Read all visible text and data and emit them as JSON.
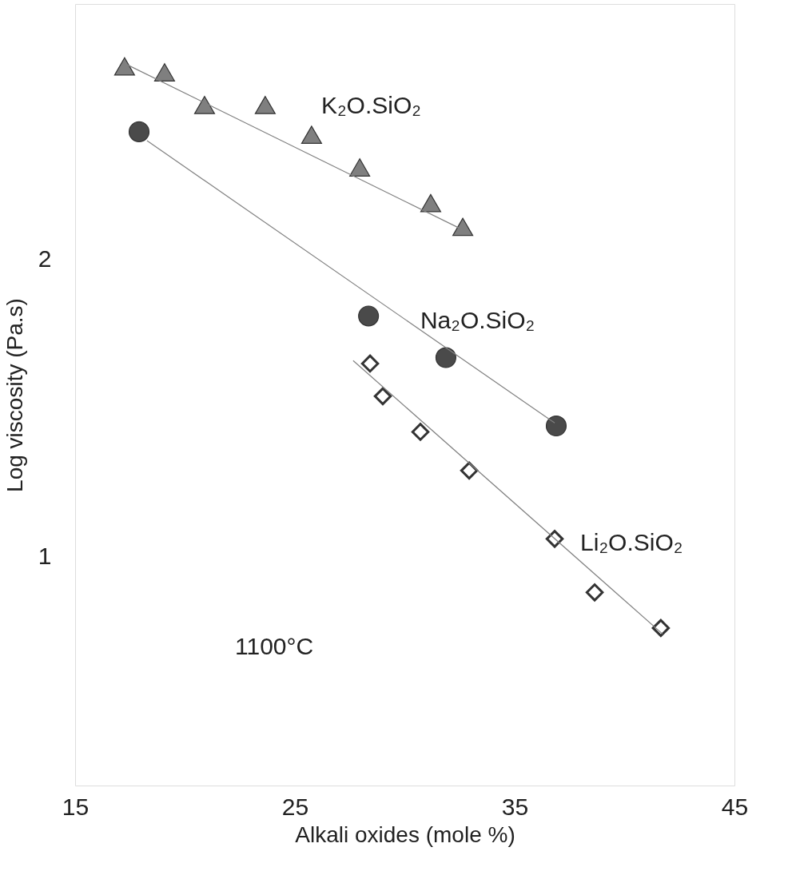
{
  "chart_data": {
    "type": "scatter",
    "xlabel": "Alkali oxides (mole %)",
    "ylabel": "Log viscosity (Pa.s)",
    "xlim": [
      15,
      45
    ],
    "xticks": [
      15,
      25,
      35,
      45
    ],
    "ylim": [
      0.23,
      2.86
    ],
    "yticks": [
      1,
      2
    ],
    "grid": false,
    "annotations": [
      "1100°C"
    ],
    "series": [
      {
        "name": "K₂O.SiO₂",
        "marker": "triangle",
        "color": "#7f7f7f",
        "x": [
          17.25,
          19.07,
          20.89,
          23.65,
          25.76,
          27.95,
          31.18,
          32.64
        ],
        "values": [
          2.65,
          2.63,
          2.52,
          2.52,
          2.42,
          2.31,
          2.19,
          2.11
        ]
      },
      {
        "name": "Na₂O.SiO₂",
        "marker": "circle",
        "color": "#4a4a4a",
        "x": [
          17.91,
          28.35,
          31.87,
          36.89
        ],
        "values": [
          2.43,
          1.81,
          1.67,
          1.44
        ]
      },
      {
        "name": "Li₂O.SiO₂",
        "marker": "diamond",
        "color": "#404040",
        "x": [
          28.42,
          29.0,
          30.71,
          32.93,
          36.82,
          38.64,
          41.65
        ],
        "values": [
          1.65,
          1.54,
          1.42,
          1.29,
          1.06,
          0.88,
          0.76
        ]
      },
      {
        "type": "line",
        "color": "#808080",
        "x": [
          17.25,
          32.64
        ],
        "values": [
          2.66,
          2.1
        ]
      },
      {
        "type": "line",
        "color": "#808080",
        "x": [
          18.27,
          36.82
        ],
        "values": [
          2.4,
          1.45
        ]
      },
      {
        "type": "line",
        "color": "#808080",
        "x": [
          27.65,
          41.73
        ],
        "values": [
          1.66,
          0.74
        ]
      }
    ]
  }
}
